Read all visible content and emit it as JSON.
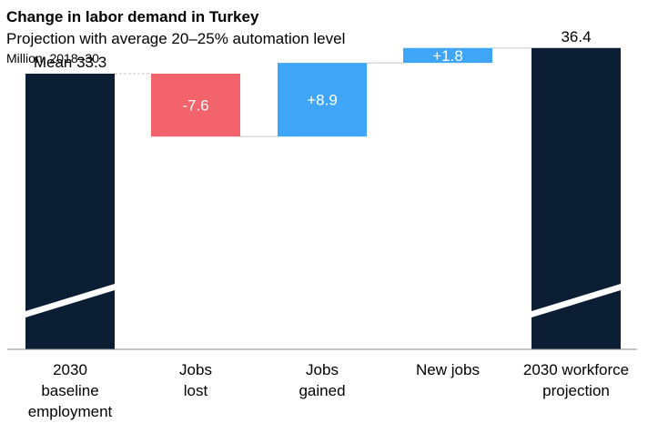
{
  "chart_data": {
    "type": "waterfall",
    "title": "Change in labor demand in Turkey",
    "subtitle": "Projection with average 20–25% automation level",
    "unit": "Million, 2018–30",
    "categories": [
      [
        "2030",
        "baseline",
        "employment"
      ],
      [
        "Jobs",
        "lost"
      ],
      [
        "Jobs",
        "gained"
      ],
      [
        "New jobs"
      ],
      [
        "2030 workforce",
        "projection"
      ]
    ],
    "steps": [
      {
        "kind": "total",
        "value": 33.3,
        "label": "Mean 33.3",
        "color": "#0b1e33"
      },
      {
        "kind": "delta",
        "value": -7.6,
        "label": "-7.6",
        "color": "#f2636c"
      },
      {
        "kind": "delta",
        "value": 8.9,
        "label": "+8.9",
        "color": "#3fa6f7"
      },
      {
        "kind": "delta",
        "value": 1.8,
        "label": "+1.8",
        "color": "#3fa6f7"
      },
      {
        "kind": "total",
        "value": 36.4,
        "label": "36.4",
        "color": "#0b1e33"
      }
    ]
  }
}
